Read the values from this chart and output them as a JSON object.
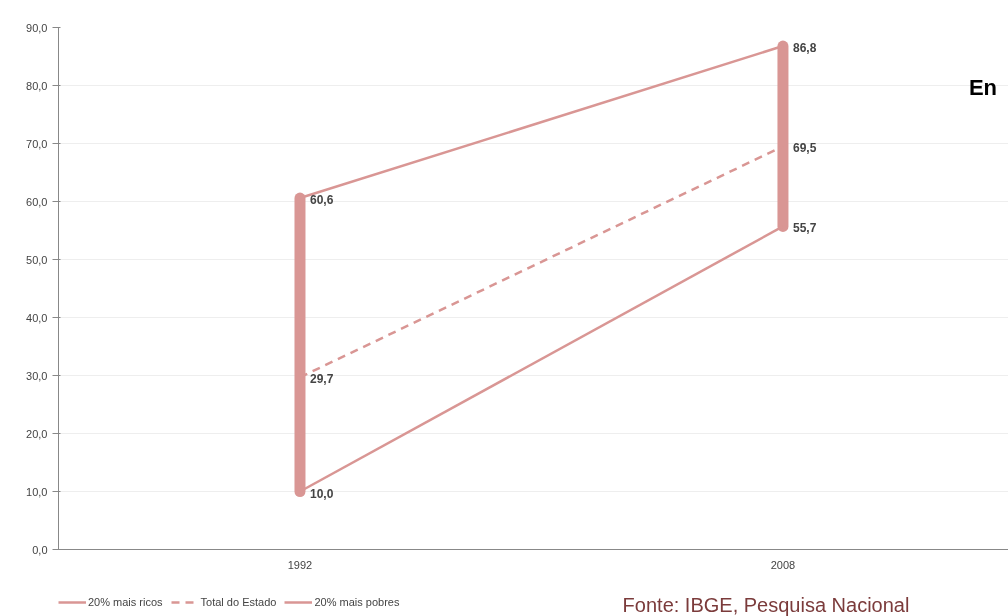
{
  "chart_data": {
    "type": "line",
    "categories": [
      "1992",
      "2008"
    ],
    "series": [
      {
        "name": "20% mais ricos",
        "color": "#d99694",
        "values": [
          60.6,
          86.8
        ],
        "value_labels": [
          "60,6",
          "86,8"
        ],
        "line_style": "solid"
      },
      {
        "name": "Total do Estado",
        "color": "#d99694",
        "values": [
          29.7,
          69.5
        ],
        "value_labels": [
          "29,7",
          "69,5"
        ],
        "line_style": "dashed"
      },
      {
        "name": "20% mais pobres",
        "color": "#d99694",
        "values": [
          10.0,
          55.7
        ],
        "value_labels": [
          "10,0",
          "55,7"
        ],
        "line_style": "solid"
      }
    ],
    "ylim": [
      0,
      90
    ],
    "yticks": [
      {
        "value": 0,
        "label": "0,0"
      },
      {
        "value": 10,
        "label": "10,0"
      },
      {
        "value": 20,
        "label": "20,0"
      },
      {
        "value": 30,
        "label": "30,0"
      },
      {
        "value": 40,
        "label": "40,0"
      },
      {
        "value": 50,
        "label": "50,0"
      },
      {
        "value": 60,
        "label": "60,0"
      },
      {
        "value": 70,
        "label": "70,0"
      },
      {
        "value": 80,
        "label": "80,0"
      },
      {
        "value": 90,
        "label": "90,0"
      }
    ],
    "grid": "y",
    "legend": "bottom left",
    "annotations": [
      "En",
      "Fonte: IBGE, Pesquisa Nacional"
    ]
  }
}
